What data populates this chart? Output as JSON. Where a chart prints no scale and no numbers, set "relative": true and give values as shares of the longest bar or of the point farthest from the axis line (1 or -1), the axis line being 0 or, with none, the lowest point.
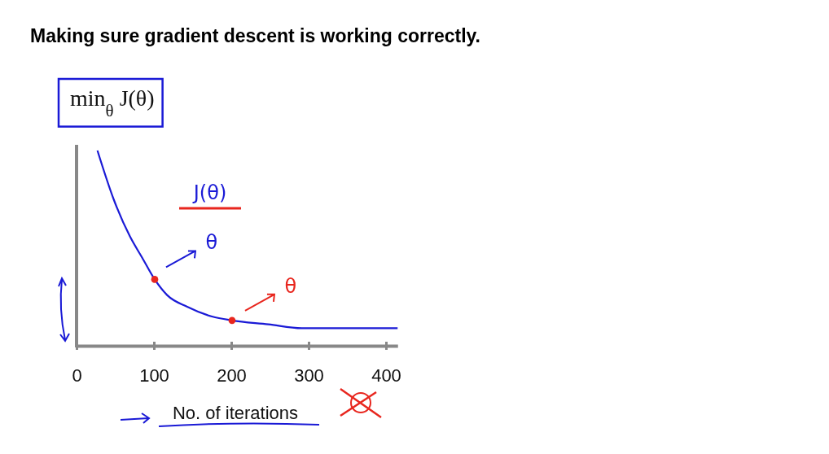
{
  "chart_data": {
    "type": "line",
    "title": "Making sure gradient descent is working correctly.",
    "xlabel": "No. of iterations",
    "ylabel": "min$_{θ}$ J(θ)",
    "relative": true,
    "xlim": [
      0,
      415
    ],
    "xticks": [
      0,
      100,
      200,
      300,
      400
    ],
    "series": [
      {
        "color": "#1a1ad6",
        "x": [
          27,
          48,
          69,
          85,
          101,
          117,
          143,
          175,
          201,
          248,
          291,
          343,
          415
        ],
        "values": [
          1.0,
          0.75,
          0.56,
          0.45,
          0.34,
          0.26,
          0.2,
          0.15,
          0.13,
          0.11,
          0.09,
          0.09,
          0.09
        ]
      },
      {
        "type": "scatter",
        "marker": "circle",
        "color": "#e8261e",
        "x": [
          101,
          201
        ],
        "values": [
          0.34,
          0.13
        ]
      }
    ],
    "grid": false,
    "annotations": [
      "J(θ)",
      {
        "text": "θ",
        "x": 101,
        "y": 0.34
      },
      {
        "text": "θ",
        "x": 201,
        "y": 0.13
      }
    ]
  }
}
